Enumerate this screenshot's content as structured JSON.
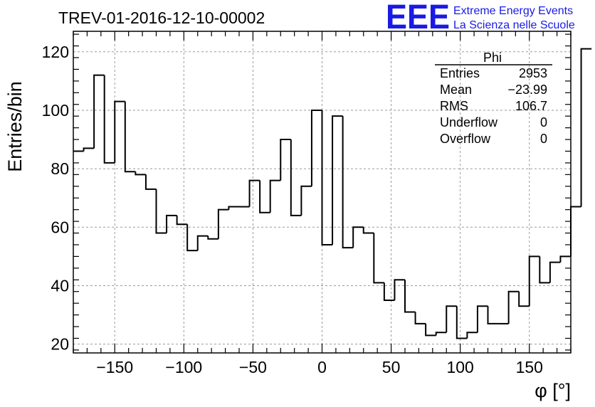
{
  "chart_data": {
    "type": "histogram",
    "title": "TREV-01-2016-12-10-00002",
    "xlabel": "φ [°]",
    "ylabel": "Entries/bin",
    "xlim": [
      -180,
      180
    ],
    "ylim": [
      17,
      127
    ],
    "xticks": [
      -150,
      -100,
      -50,
      0,
      50,
      100,
      150
    ],
    "xtick_labels": [
      "−150",
      "−100",
      "−50",
      "0",
      "50",
      "100",
      "150"
    ],
    "yticks": [
      20,
      40,
      60,
      80,
      100,
      120
    ],
    "ytick_labels": [
      "20",
      "40",
      "60",
      "80",
      "100",
      "120"
    ],
    "grid": true,
    "bin_edges_start": -180,
    "bin_width": 7.5,
    "bin_values": [
      86,
      87,
      112,
      82,
      103,
      79,
      78,
      73,
      58,
      64,
      61,
      52,
      57,
      56,
      66,
      67,
      67,
      76,
      65,
      76,
      90,
      64,
      74,
      100,
      54,
      98,
      53,
      60,
      58,
      41,
      35,
      42,
      31,
      27,
      23,
      24,
      33,
      22,
      24,
      33,
      27,
      27,
      38,
      33,
      50,
      41,
      48,
      50,
      67,
      121
    ],
    "stats": {
      "name": "Phi",
      "rows": [
        {
          "label": "Entries",
          "value": "2953"
        },
        {
          "label": "Mean",
          "value": "−23.99"
        },
        {
          "label": "RMS",
          "value": "106.7"
        },
        {
          "label": "Underflow",
          "value": "0"
        },
        {
          "label": "Overflow",
          "value": "0"
        }
      ]
    }
  },
  "logo": {
    "mark": "EEE",
    "line1": "Extreme Energy Events",
    "line2": "La Scienza nelle Scuole",
    "color": "#1a1ae6"
  }
}
